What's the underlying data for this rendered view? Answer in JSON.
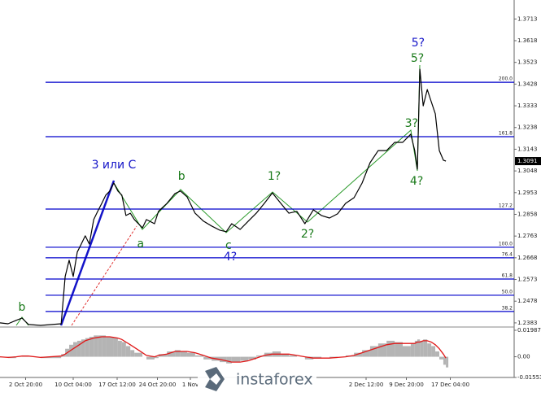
{
  "chart_data": [
    {
      "type": "line",
      "color": "#000000",
      "x": [
        0,
        2.2,
        4.4,
        6,
        7.8,
        11.1,
        16.7,
        17.8,
        18.9,
        20,
        21.1,
        22.2,
        23.3,
        24.4,
        25.6,
        26.7,
        27.8,
        28.9,
        30,
        31.1,
        32.2,
        33.3,
        34.4,
        35.6,
        36.7,
        38.9,
        40,
        42.2,
        43.3,
        45.6,
        47.8,
        49.3,
        51.1,
        53.3,
        55.6,
        57.8,
        60,
        61.8,
        63.3,
        65.6,
        67.8,
        70,
        72.2,
        74.4,
        76.7,
        78.9,
        81.1,
        83.3,
        85.6,
        87.8,
        90,
        92.2,
        94.4,
        96.7,
        98.9,
        101.1,
        103.3,
        105.6,
        107.8,
        110,
        112.2,
        113.3,
        114,
        114.7,
        115.6,
        116.7,
        117.8,
        118.9,
        120,
        121.1,
        121.8
      ],
      "values": [
        1.2383,
        1.2379,
        1.2394,
        1.2404,
        1.2376,
        1.2372,
        1.2379,
        1.2586,
        1.2657,
        1.2586,
        1.2693,
        1.2728,
        1.2764,
        1.2728,
        1.2835,
        1.2871,
        1.2906,
        1.2942,
        1.296,
        1.2995,
        1.296,
        1.2942,
        1.2853,
        1.2863,
        1.2835,
        1.2799,
        1.2835,
        1.2817,
        1.2871,
        1.2906,
        1.2949,
        1.296,
        1.2935,
        1.2863,
        1.2828,
        1.2807,
        1.2789,
        1.2782,
        1.2817,
        1.2792,
        1.2828,
        1.2863,
        1.2906,
        1.2952,
        1.2906,
        1.2863,
        1.2871,
        1.2817,
        1.2878,
        1.2853,
        1.2842,
        1.286,
        1.2906,
        1.2931,
        1.2995,
        1.3084,
        1.3137,
        1.3137,
        1.3173,
        1.3173,
        1.3209,
        1.3137,
        1.3056,
        1.3493,
        1.3333,
        1.3404,
        1.3351,
        1.3298,
        1.3137,
        1.3095,
        1.3091
      ],
      "xlim": [
        0,
        140
      ],
      "xticks": [
        {
          "value": 7,
          "label": "2 Oct 20:00"
        },
        {
          "value": 20,
          "label": "10 Oct 04:00"
        },
        {
          "value": 32,
          "label": "17 Oct 12:00"
        },
        {
          "value": 43,
          "label": "24 Oct 20:00"
        },
        {
          "value": 52,
          "label": "1 Nov"
        },
        {
          "value": 100,
          "label": "2 Dec 12:00"
        },
        {
          "value": 111,
          "label": "9 Dec 20:00"
        },
        {
          "value": 123,
          "label": "17 Dec 04:00"
        }
      ],
      "ylim": [
        1.2372,
        1.3796
      ],
      "yticks": [
        1.3713,
        1.3618,
        1.3523,
        1.3428,
        1.3333,
        1.3238,
        1.3143,
        1.3048,
        1.2953,
        1.2858,
        1.2763,
        1.2668,
        1.2573,
        1.2478,
        1.2383
      ],
      "last_price": 1.3091,
      "levels_color": "#0000cc",
      "levels": [
        {
          "value": 1.3436,
          "label": "200.0"
        },
        {
          "value": 1.3198,
          "label": "161.8"
        },
        {
          "value": 1.2881,
          "label": "127.2"
        },
        {
          "value": 1.2714,
          "label": "100.0"
        },
        {
          "value": 1.2668,
          "label": "76.4"
        },
        {
          "value": 1.2575,
          "label": "61.8"
        },
        {
          "value": 1.2504,
          "label": "50.0"
        },
        {
          "value": 1.2433,
          "label": "38.2"
        }
      ],
      "annotations": [
        {
          "text": "b",
          "x": 6,
          "y": 1.2451,
          "color": "#1a7a1a"
        },
        {
          "text": "3 или C",
          "x": 31.1,
          "y": 1.3073,
          "color": "#1414c8"
        },
        {
          "text": "b",
          "x": 49.6,
          "y": 1.3024,
          "color": "#1a7a1a"
        },
        {
          "text": "a",
          "x": 38.4,
          "y": 1.2728,
          "color": "#1a7a1a"
        },
        {
          "text": "c",
          "x": 62.4,
          "y": 1.2721,
          "color": "#1a7a1a"
        },
        {
          "text": "4?",
          "x": 62.9,
          "y": 1.2671,
          "color": "#1414c8"
        },
        {
          "text": "1?",
          "x": 74.9,
          "y": 1.3024,
          "color": "#1a7a1a"
        },
        {
          "text": "2?",
          "x": 84,
          "y": 1.2771,
          "color": "#1a7a1a"
        },
        {
          "text": "3?",
          "x": 112.4,
          "y": 1.3255,
          "color": "#1a7a1a"
        },
        {
          "text": "4?",
          "x": 113.8,
          "y": 1.3002,
          "color": "#1a7a1a"
        },
        {
          "text": "5?",
          "x": 114,
          "y": 1.354,
          "color": "#1a7a1a"
        },
        {
          "text": "5?",
          "x": 114.2,
          "y": 1.3607,
          "color": "#1414c8"
        }
      ],
      "watermark": "instaforex"
    },
    {
      "type": "histogram-line",
      "x": [
        0,
        2.2,
        4.4,
        6,
        7.8,
        11.1,
        16.7,
        17.8,
        18.9,
        20,
        21.1,
        22.2,
        23.3,
        24.4,
        25.6,
        26.7,
        27.8,
        28.9,
        30,
        31.1,
        32.2,
        33.3,
        34.4,
        35.6,
        36.7,
        38.9,
        40,
        42.2,
        43.3,
        45.6,
        47.8,
        49.3,
        51.1,
        53.3,
        55.6,
        57.8,
        60,
        61.8,
        63.3,
        65.6,
        67.8,
        70,
        72.2,
        74.4,
        76.7,
        78.9,
        81.1,
        83.3,
        85.6,
        87.8,
        90,
        92.2,
        94.4,
        96.7,
        98.9,
        101.1,
        103.3,
        105.6,
        107.8,
        110,
        112.2,
        113.3,
        114,
        114.7,
        115.6,
        116.7,
        117.8,
        118.9,
        120,
        121.1,
        121.8
      ],
      "series": [
        {
          "color": "#b4b4b4",
          "values": [
            -0.0005,
            -0.001,
            0,
            0.001,
            0,
            -0.001,
            0.002,
            0.006,
            0.009,
            0.011,
            0.012,
            0.013,
            0.014,
            0.015,
            0.016,
            0.016,
            0.016,
            0.015,
            0.015,
            0.014,
            0.012,
            0.011,
            0.008,
            0.005,
            0.003,
            0,
            -0.002,
            -0.001,
            0.002,
            0.004,
            0.005,
            0.004,
            0.003,
            0.001,
            -0.002,
            -0.003,
            -0.004,
            -0.005,
            -0.004,
            -0.003,
            -0.002,
            0.001,
            0.003,
            0.004,
            0.002,
            0.001,
            0,
            -0.002,
            -0.001,
            0,
            -0.001,
            0,
            0.001,
            0.003,
            0.005,
            0.008,
            0.01,
            0.012,
            0.011,
            0.008,
            0.01,
            0.012,
            0.013,
            0.012,
            0.013,
            0.01,
            0.008,
            0.004,
            -0.002,
            -0.006,
            -0.008
          ]
        },
        {
          "color": "#e01818",
          "values": [
            0,
            -0.0005,
            0,
            0.0005,
            0.0005,
            -0.0005,
            0.0005,
            0.002,
            0.004,
            0.006,
            0.008,
            0.01,
            0.012,
            0.013,
            0.014,
            0.0145,
            0.015,
            0.015,
            0.015,
            0.0145,
            0.014,
            0.013,
            0.011,
            0.009,
            0.007,
            0.003,
            0.001,
            0,
            0.001,
            0.002,
            0.004,
            0.004,
            0.004,
            0.003,
            0.001,
            -0.001,
            -0.002,
            -0.003,
            -0.004,
            -0.004,
            -0.003,
            -0.001,
            0.001,
            0.002,
            0.002,
            0.002,
            0.001,
            0,
            -0.001,
            -0.001,
            -0.001,
            -0.0005,
            0,
            0.001,
            0.003,
            0.005,
            0.007,
            0.009,
            0.01,
            0.01,
            0.01,
            0.01,
            0.011,
            0.011,
            0.012,
            0.012,
            0.011,
            0.009,
            0.006,
            0.002,
            -0.001
          ]
        }
      ],
      "xlim": [
        0,
        140
      ],
      "ylim": [
        -0.01553,
        0.01987
      ],
      "yticks": [
        0.01987,
        {
          "value": 0,
          "label": "0.00"
        },
        -0.01553
      ]
    }
  ]
}
